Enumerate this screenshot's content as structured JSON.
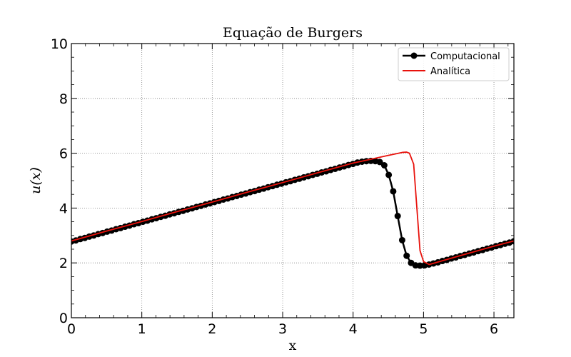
{
  "chart_data": {
    "type": "line",
    "title": "Equação de Burgers",
    "xlabel": "x",
    "ylabel": "u(x)",
    "xlim": [
      0,
      6.2832
    ],
    "ylim": [
      0,
      10
    ],
    "grid": true,
    "legend_position": "top-right",
    "x_ticks": [
      "0",
      "1",
      "2",
      "3",
      "4",
      "5",
      "6"
    ],
    "y_ticks": [
      "0",
      "2",
      "4",
      "6",
      "8",
      "10"
    ],
    "series": [
      {
        "name": "Computacional",
        "color": "#000000",
        "marker": "circle",
        "x": [
          0.0,
          0.0635,
          0.1269,
          0.1904,
          0.2539,
          0.3173,
          0.3808,
          0.4443,
          0.5077,
          0.5712,
          0.6347,
          0.6981,
          0.7616,
          0.8251,
          0.8885,
          0.952,
          1.0155,
          1.0789,
          1.1424,
          1.2059,
          1.2693,
          1.3328,
          1.3963,
          1.4597,
          1.5232,
          1.5867,
          1.6501,
          1.7136,
          1.7771,
          1.8405,
          1.904,
          1.9675,
          2.0309,
          2.0944,
          2.1579,
          2.2213,
          2.2848,
          2.3483,
          2.4117,
          2.4752,
          2.5387,
          2.6021,
          2.6656,
          2.7291,
          2.7925,
          2.856,
          2.9195,
          2.9829,
          3.0464,
          3.1099,
          3.1733,
          3.2368,
          3.3003,
          3.3637,
          3.4272,
          3.4907,
          3.5541,
          3.6176,
          3.6811,
          3.7445,
          3.808,
          3.8715,
          3.9349,
          3.9984,
          4.0619,
          4.1253,
          4.1888,
          4.2523,
          4.3157,
          4.3792,
          4.4427,
          4.5061,
          4.5696,
          4.6331,
          4.6965,
          4.76,
          4.8235,
          4.8869,
          4.9504,
          5.0139,
          5.0773,
          5.1408,
          5.2043,
          5.2677,
          5.3312,
          5.3947,
          5.4581,
          5.5216,
          5.5851,
          5.6485,
          5.712,
          5.7755,
          5.8389,
          5.9024,
          5.9659,
          6.0293,
          6.0928,
          6.1563,
          6.2197,
          6.2832
        ],
        "y": [
          2.78,
          2.82,
          2.87,
          2.91,
          2.96,
          3.0,
          3.05,
          3.09,
          3.14,
          3.18,
          3.23,
          3.27,
          3.32,
          3.36,
          3.41,
          3.45,
          3.5,
          3.54,
          3.59,
          3.63,
          3.68,
          3.72,
          3.77,
          3.81,
          3.86,
          3.9,
          3.95,
          3.99,
          4.04,
          4.08,
          4.13,
          4.17,
          4.22,
          4.26,
          4.31,
          4.35,
          4.4,
          4.44,
          4.49,
          4.53,
          4.58,
          4.62,
          4.67,
          4.71,
          4.76,
          4.8,
          4.85,
          4.89,
          4.94,
          4.98,
          5.03,
          5.07,
          5.12,
          5.16,
          5.21,
          5.25,
          5.3,
          5.34,
          5.39,
          5.43,
          5.48,
          5.52,
          5.57,
          5.61,
          5.66,
          5.69,
          5.71,
          5.72,
          5.71,
          5.68,
          5.56,
          5.21,
          4.61,
          3.71,
          2.83,
          2.26,
          2.0,
          1.91,
          1.9,
          1.91,
          1.94,
          1.98,
          2.02,
          2.07,
          2.11,
          2.16,
          2.2,
          2.25,
          2.29,
          2.34,
          2.38,
          2.43,
          2.47,
          2.52,
          2.56,
          2.61,
          2.65,
          2.7,
          2.74,
          2.79
        ]
      },
      {
        "name": "Analítica",
        "color": "#e8120c",
        "marker": "none",
        "x": [
          0.0,
          0.5,
          1.0,
          1.5,
          2.0,
          2.5,
          3.0,
          3.5,
          4.0,
          4.5,
          4.7,
          4.76,
          4.8,
          4.86,
          4.95,
          5.0,
          5.08,
          5.5,
          6.0,
          6.2832
        ],
        "y": [
          2.8,
          3.16,
          3.51,
          3.87,
          4.22,
          4.58,
          4.93,
          5.29,
          5.64,
          5.92,
          6.03,
          6.04,
          6.0,
          5.6,
          2.45,
          2.05,
          1.94,
          2.25,
          2.61,
          2.8
        ]
      }
    ]
  }
}
